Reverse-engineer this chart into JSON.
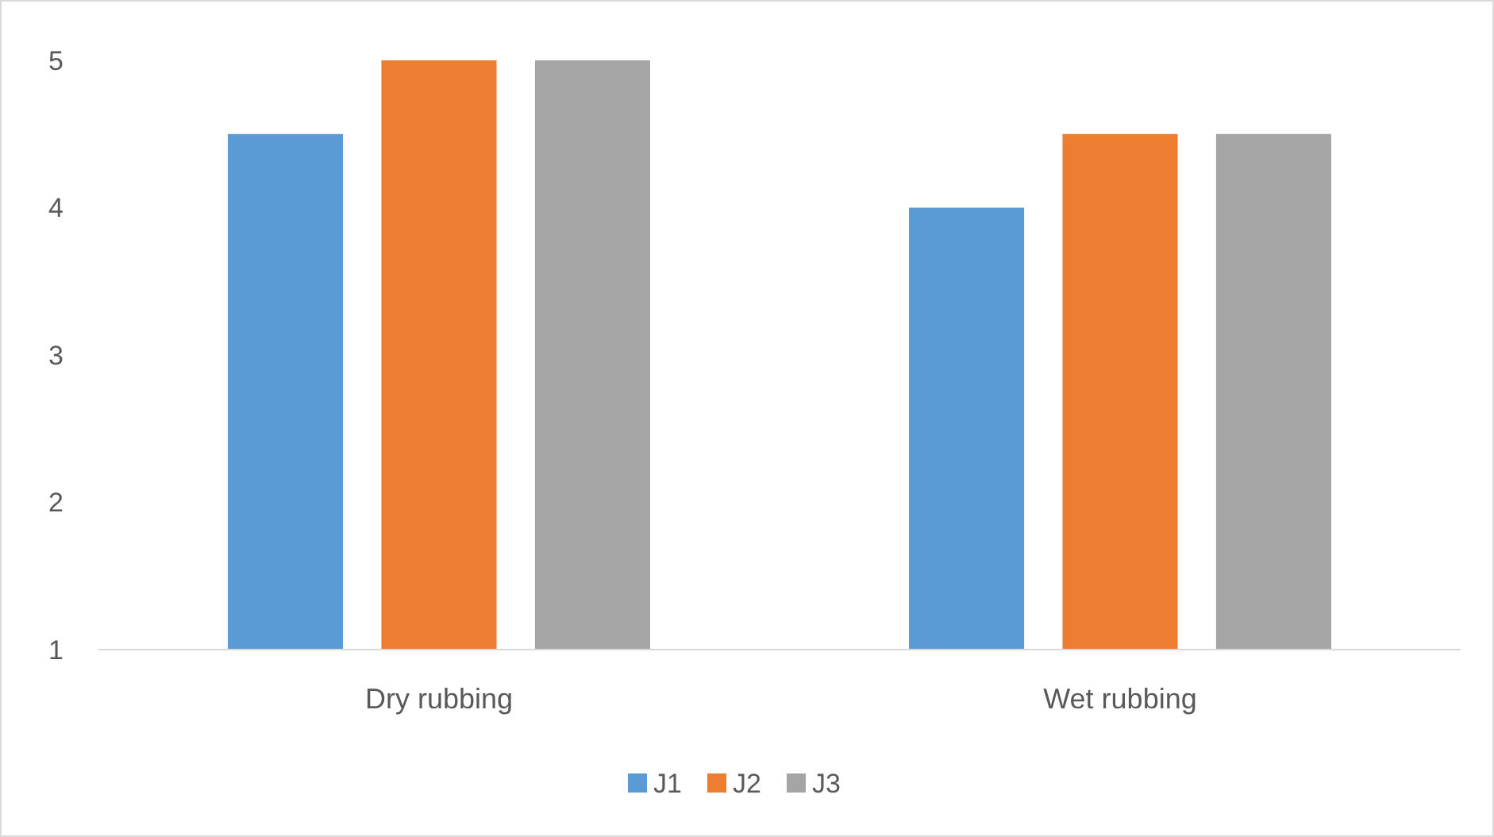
{
  "chart_data": {
    "type": "bar",
    "categories": [
      "Dry rubbing",
      "Wet rubbing"
    ],
    "series": [
      {
        "name": "J1",
        "color": "#5b9bd5",
        "values": [
          4.5,
          4
        ]
      },
      {
        "name": "J2",
        "color": "#ed7d31",
        "values": [
          5,
          4.5
        ]
      },
      {
        "name": "J3",
        "color": "#a5a5a5",
        "values": [
          5,
          4.5
        ]
      }
    ],
    "ylim": [
      1,
      5
    ],
    "yticks": [
      1,
      2,
      3,
      4,
      5
    ],
    "grid": false,
    "legend": "bottom"
  }
}
